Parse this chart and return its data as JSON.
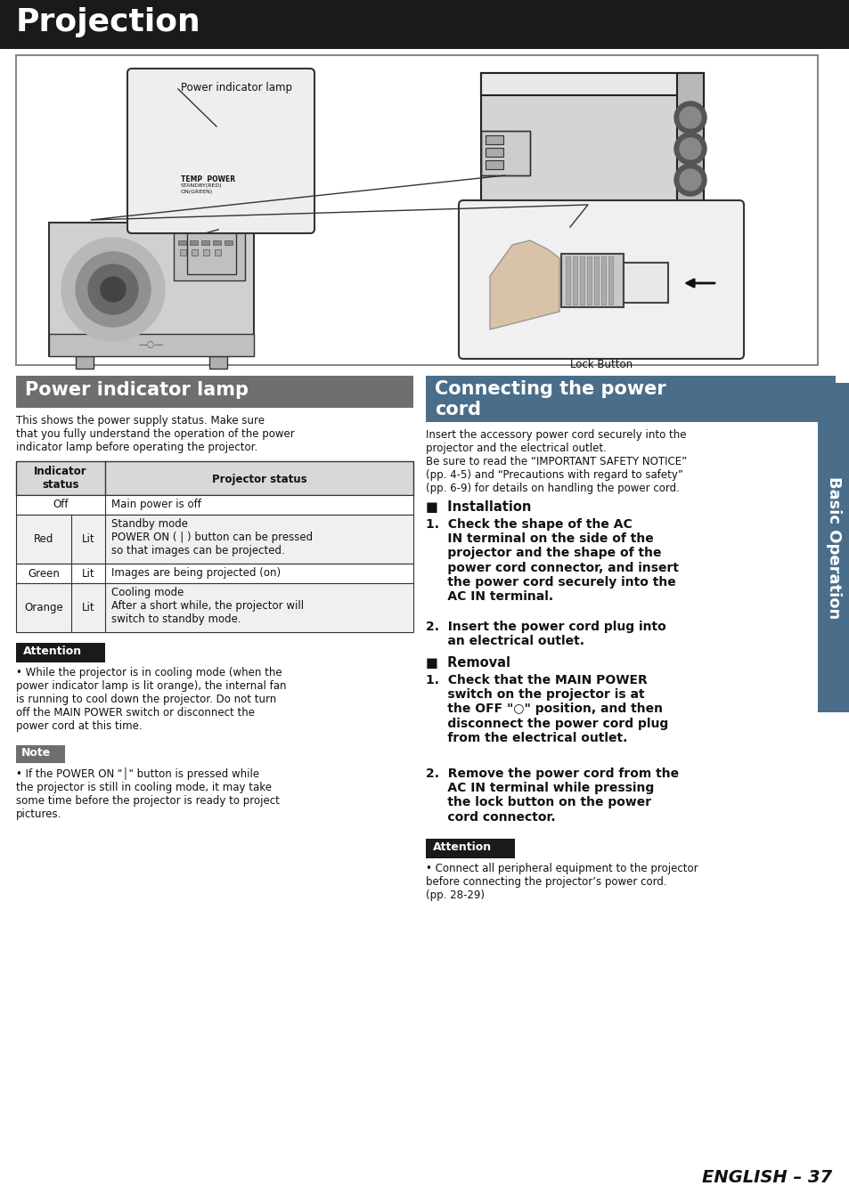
{
  "title": "Projection",
  "title_bg": "#1a1a1a",
  "title_color": "#ffffff",
  "page_bg": "#ffffff",
  "section1_header": "Power indicator lamp",
  "section1_header_bg": "#6e6e6e",
  "section1_header_color": "#ffffff",
  "section1_intro": "This shows the power supply status. Make sure\nthat you fully understand the operation of the power\nindicator lamp before operating the projector.",
  "table_header_bg": "#d8d8d8",
  "table_col1_header": "Indicator\nstatus",
  "table_col2_header": "Projector status",
  "table_rows": [
    {
      "col1a": "Off",
      "col1b": "",
      "col2": "Main power is off"
    },
    {
      "col1a": "Red",
      "col1b": "Lit",
      "col2": "Standby mode\nPOWER ON ( | ) button can be pressed\nso that images can be projected."
    },
    {
      "col1a": "Green",
      "col1b": "Lit",
      "col2": "Images are being projected (on)"
    },
    {
      "col1a": "Orange",
      "col1b": "Lit",
      "col2": "Cooling mode\nAfter a short while, the projector will\nswitch to standby mode."
    }
  ],
  "attention_bg": "#1a1a1a",
  "attention_color": "#ffffff",
  "attention_label": "Attention",
  "attention_text": "While the projector is in cooling mode (when the\npower indicator lamp is lit orange), the internal fan\nis running to cool down the projector. Do not turn\noff the MAIN POWER switch or disconnect the\npower cord at this time.",
  "note_bg": "#6e6e6e",
  "note_color": "#ffffff",
  "note_label": "Note",
  "note_text": "If the POWER ON \"│\" button is pressed while\nthe projector is still in cooling mode, it may take\nsome time before the projector is ready to project\npictures.",
  "section2_header": "Connecting the power\ncord",
  "section2_header_bg": "#4a6e8a",
  "section2_header_color": "#ffffff",
  "section2_intro": "Insert the accessory power cord securely into the\nprojector and the electrical outlet.\nBe sure to read the “IMPORTANT SAFETY NOTICE”\n(pp. 4-5) and “Precautions with regard to safety”\n(pp. 6-9) for details on handling the power cord.",
  "installation_header": "■  Installation",
  "installation_item1": "1.  Check the shape of the AC\n     IN terminal on the side of the\n     projector and the shape of the\n     power cord connector, and insert\n     the power cord securely into the\n     AC IN terminal.",
  "installation_item2": "2.  Insert the power cord plug into\n     an electrical outlet.",
  "removal_header": "■  Removal",
  "removal_item1": "1.  Check that the MAIN POWER\n     switch on the projector is at\n     the OFF \"○\" position, and then\n     disconnect the power cord plug\n     from the electrical outlet.",
  "removal_item2": "2.  Remove the power cord from the\n     AC IN terminal while pressing\n     the lock button on the power\n     cord connector.",
  "attention2_label": "Attention",
  "attention2_text": "Connect all peripheral equipment to the projector\nbefore connecting the projector’s power cord.\n(pp. 28-29)",
  "sidebar_text": "Basic Operation",
  "sidebar_bg": "#4a6e8a",
  "sidebar_color": "#ffffff",
  "page_number": "ENGLISH – 37",
  "lock_button_label": "Lock Button",
  "power_indicator_label": "Power indicator lamp"
}
